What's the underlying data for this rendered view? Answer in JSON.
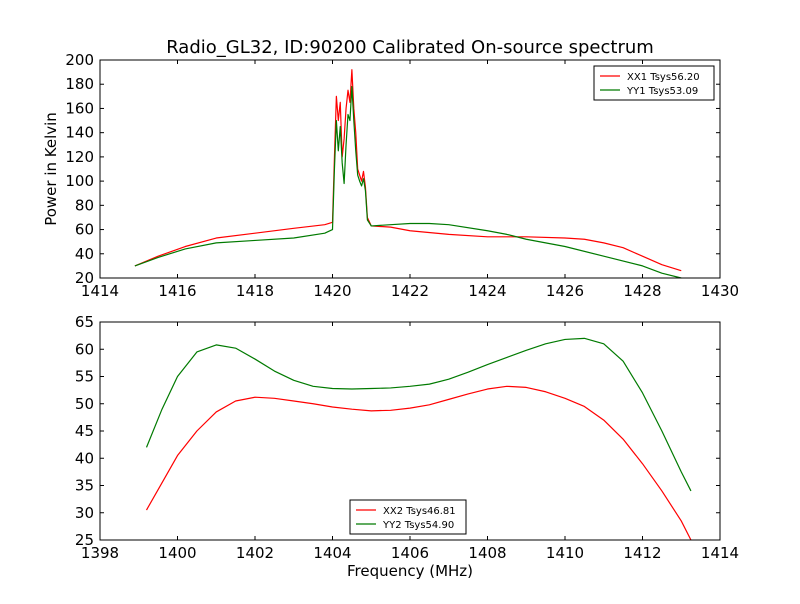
{
  "figure": {
    "title": "Radio_GL32, ID:90200 Calibrated On-source spectrum"
  },
  "chart_data": [
    {
      "type": "line",
      "ylabel": "Power in Kelvin",
      "xlabel": "",
      "xlim": [
        1414,
        1430
      ],
      "ylim": [
        20,
        200
      ],
      "xticks": [
        "1414",
        "1416",
        "1418",
        "1420",
        "1422",
        "1424",
        "1426",
        "1428",
        "1430"
      ],
      "yticks": [
        "20",
        "40",
        "60",
        "80",
        "100",
        "120",
        "140",
        "160",
        "180",
        "200"
      ],
      "legend_position": "top-right",
      "series": [
        {
          "name": "XX1 Tsys56.20",
          "color": "#ff0000",
          "x": [
            1414.9,
            1415.5,
            1416.2,
            1417,
            1418,
            1419,
            1419.8,
            1420.0,
            1420.05,
            1420.1,
            1420.15,
            1420.2,
            1420.25,
            1420.3,
            1420.35,
            1420.4,
            1420.45,
            1420.5,
            1420.55,
            1420.6,
            1420.65,
            1420.7,
            1420.75,
            1420.8,
            1420.85,
            1420.9,
            1421.0,
            1421.5,
            1422,
            1423,
            1424,
            1425,
            1426,
            1426.5,
            1427,
            1427.5,
            1428,
            1428.5,
            1429
          ],
          "y": [
            30,
            38,
            46,
            53,
            57,
            61,
            64,
            66,
            120,
            170,
            150,
            165,
            120,
            135,
            160,
            175,
            165,
            192,
            160,
            140,
            110,
            105,
            100,
            108,
            95,
            70,
            63,
            62,
            59,
            56,
            54,
            54,
            53,
            52,
            49,
            45,
            38,
            31,
            26
          ]
        },
        {
          "name": "YY1 Tsys53.09",
          "color": "#007a00",
          "x": [
            1414.9,
            1415.5,
            1416.2,
            1417,
            1418,
            1419,
            1419.8,
            1420.0,
            1420.05,
            1420.1,
            1420.15,
            1420.2,
            1420.25,
            1420.3,
            1420.35,
            1420.4,
            1420.45,
            1420.5,
            1420.55,
            1420.6,
            1420.65,
            1420.7,
            1420.75,
            1420.8,
            1420.85,
            1420.9,
            1421.0,
            1421.5,
            1422,
            1422.5,
            1423,
            1424,
            1424.5,
            1425,
            1426,
            1427,
            1428,
            1428.5,
            1429
          ],
          "y": [
            30,
            37,
            44,
            49,
            51,
            53,
            57,
            60,
            110,
            150,
            125,
            145,
            115,
            98,
            130,
            155,
            150,
            178,
            150,
            125,
            105,
            100,
            96,
            102,
            92,
            68,
            63,
            64,
            65,
            65,
            64,
            59,
            56,
            52,
            46,
            38,
            30,
            24,
            20
          ]
        }
      ]
    },
    {
      "type": "line",
      "ylabel": "",
      "xlabel": "Frequency (MHz)",
      "xlim": [
        1398,
        1414
      ],
      "ylim": [
        25,
        65
      ],
      "xticks": [
        "1398",
        "1400",
        "1402",
        "1404",
        "1406",
        "1408",
        "1410",
        "1412",
        "1414"
      ],
      "yticks": [
        "25",
        "30",
        "35",
        "40",
        "45",
        "50",
        "55",
        "60",
        "65"
      ],
      "legend_position": "bottom-center",
      "series": [
        {
          "name": "XX2 Tsys46.81",
          "color": "#ff0000",
          "x": [
            1399.2,
            1399.6,
            1400.0,
            1400.5,
            1401.0,
            1401.5,
            1402.0,
            1402.5,
            1403.0,
            1403.5,
            1404.0,
            1404.5,
            1405.0,
            1405.5,
            1406.0,
            1406.5,
            1407.0,
            1407.5,
            1408.0,
            1408.5,
            1409.0,
            1409.5,
            1410.0,
            1410.5,
            1411.0,
            1411.5,
            1412.0,
            1412.5,
            1413.0,
            1413.25
          ],
          "y": [
            30.5,
            35.5,
            40.5,
            45.0,
            48.5,
            50.5,
            51.2,
            51.0,
            50.5,
            50.0,
            49.4,
            49.0,
            48.7,
            48.8,
            49.2,
            49.8,
            50.8,
            51.8,
            52.7,
            53.2,
            53.0,
            52.2,
            51.0,
            49.5,
            47.0,
            43.5,
            39.0,
            34.0,
            28.5,
            25.0
          ]
        },
        {
          "name": "YY2 Tsys54.90",
          "color": "#007a00",
          "x": [
            1399.2,
            1399.6,
            1400.0,
            1400.5,
            1401.0,
            1401.5,
            1402.0,
            1402.5,
            1403.0,
            1403.5,
            1404.0,
            1404.5,
            1405.0,
            1405.5,
            1406.0,
            1406.5,
            1407.0,
            1407.5,
            1408.0,
            1408.5,
            1409.0,
            1409.5,
            1410.0,
            1410.5,
            1411.0,
            1411.5,
            1412.0,
            1412.5,
            1413.0,
            1413.25
          ],
          "y": [
            42.0,
            49.0,
            55.0,
            59.5,
            60.8,
            60.2,
            58.2,
            56.0,
            54.3,
            53.2,
            52.8,
            52.7,
            52.8,
            52.9,
            53.2,
            53.6,
            54.5,
            55.8,
            57.2,
            58.5,
            59.8,
            61.0,
            61.8,
            62.0,
            61.0,
            57.8,
            52.0,
            45.0,
            37.5,
            34.0
          ]
        }
      ]
    }
  ]
}
